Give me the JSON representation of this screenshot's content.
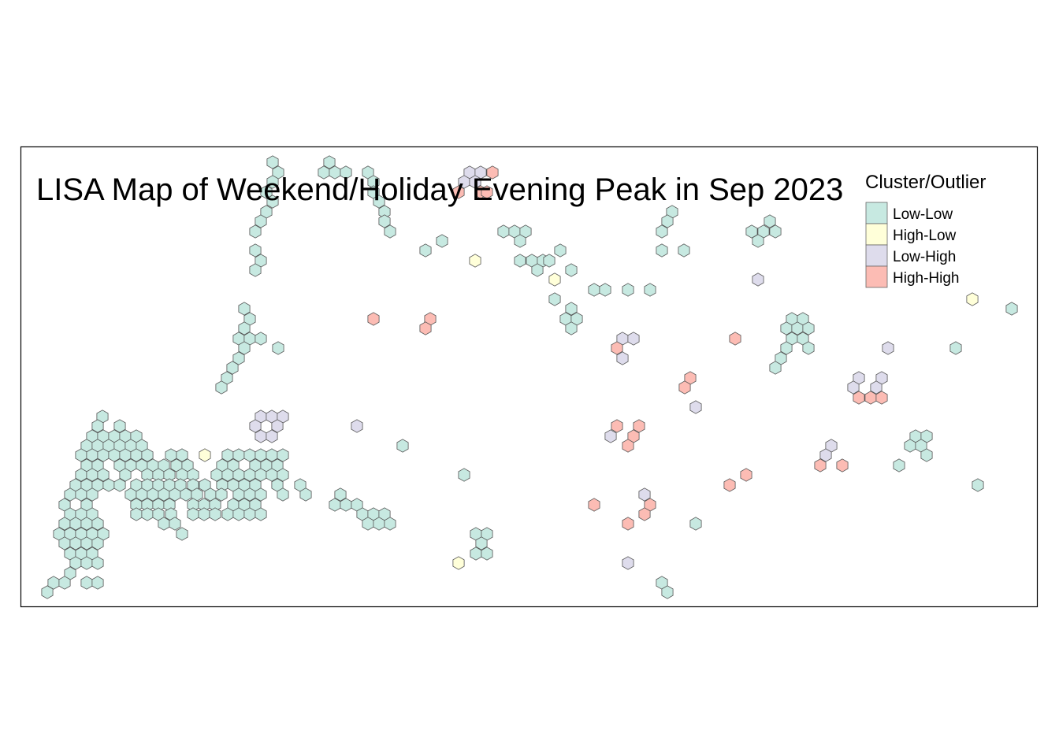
{
  "title": "LISA Map of Weekend/Holiday Evening Peak in Sep 2023",
  "legend": {
    "title": "Cluster/Outlier",
    "items": [
      {
        "label": "Low-Low",
        "color": "#c7e9e1"
      },
      {
        "label": "High-Low",
        "color": "#ffffd9"
      },
      {
        "label": "Low-High",
        "color": "#dedcec"
      },
      {
        "label": "High-High",
        "color": "#fcbcb4"
      }
    ]
  },
  "colors": {
    "frame": "#000000",
    "hex_outline": "#555555",
    "background": "#ffffff"
  }
}
